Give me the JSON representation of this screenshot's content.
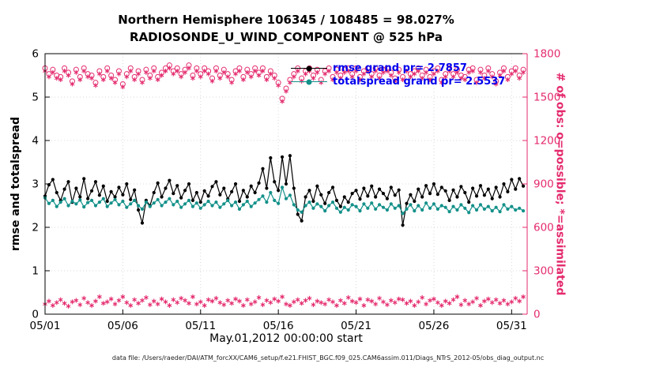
{
  "header": {
    "title_line1": "Northern Hemisphere 106345 / 108485 = 98.027%",
    "title_line2": "RADIOSONDE_U_WIND_COMPONENT @ 525 hPa"
  },
  "legend": {
    "rmse_label": "rmse grand pr= 2.7857",
    "totalspread_label": "totalspread grand pr= 2.5537"
  },
  "axes": {
    "ylabel_left": "rmse and totalspread",
    "ylabel_right": "# of obs: o=possible; *=assimilated",
    "xlabel": "May.01,2012 00:00:00 start",
    "xlim_days": [
      0,
      31
    ],
    "ylim_left": [
      0,
      6
    ],
    "ylim_right": [
      0,
      1800
    ],
    "x_tick_days": [
      0,
      5,
      10,
      15,
      20,
      25,
      30
    ],
    "x_tick_labels": [
      "05/01",
      "05/06",
      "05/11",
      "05/16",
      "05/21",
      "05/26",
      "05/31"
    ],
    "y_left_ticks": [
      0,
      1,
      2,
      3,
      4,
      5,
      6
    ],
    "y_right_ticks": [
      0,
      300,
      600,
      900,
      1200,
      1500,
      1800
    ]
  },
  "footer": {
    "data_file": "data file: /Users/raeder/DAI/ATM_forcXX/CAM6_setup/f.e21.FHIST_BGC.f09_025.CAM6assim.011/Diags_NTrS_2012-05/obs_diag_output.nc"
  },
  "colors": {
    "rmse": "#000000",
    "totalspread": "#14918a",
    "obs": "#e42a6d",
    "legend_text": "#0000ee",
    "grid": "#d8d8d8"
  },
  "chart_data": {
    "type": "line",
    "title": "Northern Hemisphere 106345 / 108485 = 98.027% — RADIOSONDE_U_WIND_COMPONENT @ 525 hPa",
    "xlabel": "May.01,2012 00:00:00 start",
    "ylabel_left": "rmse and totalspread",
    "ylabel_right": "# of obs: o=possible; *=assimilated",
    "x_start_day": 0,
    "x_step_days": 0.25,
    "series": [
      {
        "name": "rmse",
        "axis": "left",
        "color_key": "rmse",
        "marker": "dot",
        "line": true,
        "grand_mean": 2.7857,
        "values": [
          2.72,
          2.98,
          3.1,
          2.8,
          2.62,
          2.88,
          3.05,
          2.58,
          2.9,
          2.7,
          3.12,
          2.66,
          2.84,
          3.05,
          2.74,
          2.95,
          2.6,
          2.82,
          2.7,
          2.92,
          2.75,
          3.0,
          2.64,
          2.86,
          2.4,
          2.1,
          2.62,
          2.5,
          2.8,
          3.02,
          2.7,
          2.9,
          3.08,
          2.78,
          2.96,
          2.68,
          2.85,
          3.0,
          2.62,
          2.8,
          2.58,
          2.84,
          2.72,
          2.94,
          3.05,
          2.75,
          2.9,
          2.65,
          2.82,
          3.0,
          2.6,
          2.85,
          2.7,
          2.95,
          2.8,
          3.02,
          3.35,
          2.9,
          3.6,
          3.05,
          2.85,
          3.62,
          3.0,
          3.65,
          2.9,
          2.3,
          2.15,
          2.7,
          2.85,
          2.6,
          2.95,
          2.75,
          2.55,
          2.8,
          2.92,
          2.62,
          2.48,
          2.7,
          2.58,
          2.78,
          2.85,
          2.65,
          2.9,
          2.72,
          2.95,
          2.7,
          2.88,
          2.78,
          2.66,
          2.92,
          2.74,
          2.86,
          2.05,
          2.55,
          2.75,
          2.6,
          2.88,
          2.7,
          2.96,
          2.78,
          3.0,
          2.76,
          2.92,
          2.84,
          2.62,
          2.86,
          2.7,
          2.94,
          2.8,
          2.58,
          2.9,
          2.72,
          2.96,
          2.74,
          2.88,
          2.66,
          2.92,
          2.7,
          3.0,
          2.82,
          3.1,
          2.88,
          3.12,
          2.95
        ]
      },
      {
        "name": "totalspread",
        "axis": "left",
        "color_key": "totalspread",
        "marker": "dot",
        "line": true,
        "grand_mean": 2.5537,
        "values": [
          2.68,
          2.55,
          2.62,
          2.48,
          2.58,
          2.66,
          2.5,
          2.6,
          2.54,
          2.63,
          2.47,
          2.57,
          2.62,
          2.5,
          2.58,
          2.66,
          2.48,
          2.56,
          2.64,
          2.52,
          2.6,
          2.46,
          2.54,
          2.62,
          2.5,
          2.42,
          2.58,
          2.48,
          2.56,
          2.64,
          2.5,
          2.58,
          2.66,
          2.52,
          2.6,
          2.46,
          2.54,
          2.62,
          2.48,
          2.56,
          2.44,
          2.52,
          2.6,
          2.5,
          2.58,
          2.46,
          2.54,
          2.62,
          2.5,
          2.58,
          2.42,
          2.52,
          2.6,
          2.48,
          2.56,
          2.64,
          2.72,
          2.58,
          2.8,
          2.62,
          2.55,
          2.92,
          2.66,
          2.74,
          2.52,
          2.4,
          2.35,
          2.5,
          2.58,
          2.44,
          2.54,
          2.48,
          2.38,
          2.5,
          2.58,
          2.44,
          2.35,
          2.46,
          2.4,
          2.52,
          2.48,
          2.38,
          2.54,
          2.44,
          2.56,
          2.42,
          2.52,
          2.46,
          2.4,
          2.54,
          2.44,
          2.5,
          2.32,
          2.42,
          2.52,
          2.38,
          2.5,
          2.4,
          2.56,
          2.44,
          2.54,
          2.42,
          2.5,
          2.46,
          2.36,
          2.48,
          2.4,
          2.52,
          2.44,
          2.34,
          2.5,
          2.4,
          2.52,
          2.42,
          2.48,
          2.38,
          2.46,
          2.36,
          2.52,
          2.42,
          2.48,
          2.4,
          2.44,
          2.38
        ]
      },
      {
        "name": "# obs possible",
        "axis": "right",
        "color_key": "obs",
        "marker": "circle",
        "line": false,
        "values": [
          1700,
          1660,
          1690,
          1650,
          1640,
          1700,
          1670,
          1610,
          1690,
          1640,
          1700,
          1660,
          1650,
          1600,
          1680,
          1640,
          1700,
          1650,
          1620,
          1680,
          1590,
          1660,
          1700,
          1640,
          1680,
          1620,
          1690,
          1650,
          1700,
          1640,
          1670,
          1700,
          1720,
          1680,
          1700,
          1660,
          1690,
          1720,
          1650,
          1700,
          1660,
          1700,
          1680,
          1630,
          1700,
          1650,
          1690,
          1660,
          1620,
          1680,
          1700,
          1640,
          1690,
          1660,
          1700,
          1670,
          1700,
          1640,
          1680,
          1650,
          1600,
          1490,
          1560,
          1620,
          1660,
          1700,
          1630,
          1680,
          1700,
          1650,
          1690,
          1620,
          1680,
          1700,
          1640,
          1690,
          1650,
          1690,
          1700,
          1660,
          1700,
          1640,
          1680,
          1700,
          1660,
          1700,
          1650,
          1690,
          1700,
          1670,
          1630,
          1690,
          1640,
          1700,
          1660,
          1680,
          1700,
          1650,
          1690,
          1640,
          1680,
          1700,
          1620,
          1660,
          1700,
          1660,
          1690,
          1650,
          1640,
          1690,
          1700,
          1620,
          1690,
          1650,
          1700,
          1660,
          1610,
          1670,
          1700,
          1640,
          1680,
          1700,
          1650,
          1690
        ]
      },
      {
        "name": "# obs assimilated",
        "axis": "right",
        "color_key": "obs",
        "marker": "asterisk",
        "line": false,
        "values": [
          1680,
          1640,
          1670,
          1630,
          1620,
          1680,
          1650,
          1590,
          1670,
          1620,
          1680,
          1640,
          1630,
          1580,
          1660,
          1620,
          1680,
          1630,
          1600,
          1660,
          1570,
          1640,
          1680,
          1620,
          1660,
          1600,
          1670,
          1630,
          1680,
          1620,
          1650,
          1680,
          1700,
          1660,
          1680,
          1640,
          1670,
          1700,
          1630,
          1680,
          1640,
          1680,
          1660,
          1610,
          1680,
          1630,
          1670,
          1640,
          1600,
          1660,
          1680,
          1620,
          1670,
          1640,
          1680,
          1650,
          1680,
          1620,
          1660,
          1630,
          1580,
          1470,
          1540,
          1600,
          1640,
          1680,
          1610,
          1660,
          1680,
          1630,
          1670,
          1600,
          1660,
          1680,
          1620,
          1670,
          1630,
          1670,
          1680,
          1640,
          1680,
          1620,
          1660,
          1680,
          1640,
          1680,
          1630,
          1670,
          1680,
          1650,
          1610,
          1670,
          1620,
          1680,
          1640,
          1660,
          1680,
          1630,
          1670,
          1620,
          1660,
          1680,
          1600,
          1640,
          1680,
          1640,
          1670,
          1630,
          1620,
          1670,
          1680,
          1600,
          1670,
          1630,
          1680,
          1640,
          1590,
          1650,
          1680,
          1620,
          1660,
          1680,
          1630,
          1670
        ]
      },
      {
        "name": "# obs lower band",
        "axis": "right",
        "color_key": "obs",
        "marker": "asterisk",
        "line": false,
        "values": [
          70,
          90,
          60,
          80,
          100,
          75,
          55,
          85,
          95,
          65,
          110,
          80,
          60,
          90,
          120,
          75,
          85,
          105,
          70,
          95,
          120,
          80,
          60,
          100,
          75,
          95,
          115,
          65,
          90,
          70,
          105,
          85,
          60,
          100,
          80,
          110,
          95,
          75,
          120,
          70,
          85,
          60,
          100,
          90,
          110,
          80,
          65,
          95,
          75,
          105,
          90,
          60,
          100,
          70,
          85,
          115,
          65,
          95,
          80,
          105,
          90,
          120,
          70,
          60,
          85,
          100,
          75,
          95,
          110,
          65,
          90,
          80,
          70,
          100,
          85,
          60,
          95,
          75,
          115,
          90,
          80,
          105,
          60,
          100,
          90,
          70,
          110,
          85,
          65,
          95,
          80,
          105,
          100,
          75,
          90,
          60,
          85,
          115,
          70,
          95,
          105,
          80,
          60,
          90,
          75,
          100,
          120,
          65,
          95,
          70,
          85,
          110,
          60,
          90,
          105,
          80,
          100,
          75,
          95,
          70,
          85,
          110,
          90,
          120
        ]
      }
    ]
  }
}
